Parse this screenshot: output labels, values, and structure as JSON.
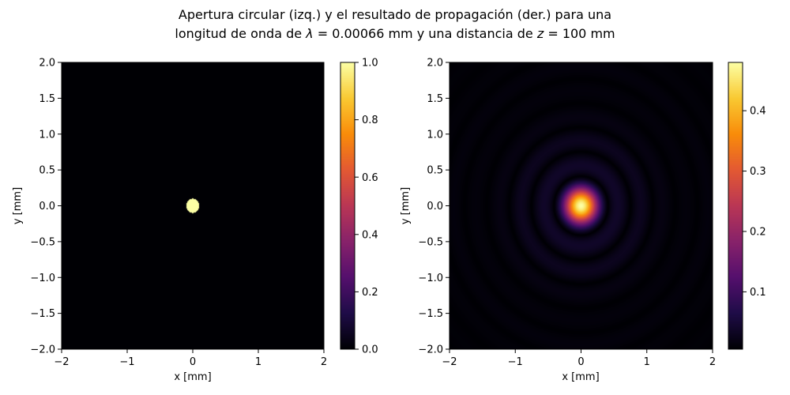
{
  "figure": {
    "title_line1": "Apertura circular (izq.) y el resultado de propagación (der.) para una",
    "title_line2_parts": [
      "longitud de onda de ",
      "λ",
      " =  0.00066 mm y una distancia de ",
      "z",
      " =  100 mm"
    ]
  },
  "colors": {
    "colormap": "inferno",
    "background": "#ffffff",
    "text": "#000000"
  },
  "chart_data": [
    {
      "type": "heatmap",
      "name": "aperture",
      "xlabel": "x [mm]",
      "ylabel": "y [mm]",
      "xlim": [
        -2,
        2
      ],
      "ylim": [
        -2,
        2
      ],
      "x_ticks": [
        -2,
        -1,
        0,
        1,
        2
      ],
      "x_tick_labels": [
        "−2",
        "−1",
        "0",
        "1",
        "2"
      ],
      "y_ticks": [
        -2.0,
        -1.5,
        -1.0,
        -0.5,
        0.0,
        0.5,
        1.0,
        1.5,
        2.0
      ],
      "y_tick_labels": [
        "−2.0",
        "−1.5",
        "−1.0",
        "−0.5",
        "0.0",
        "0.5",
        "1.0",
        "1.5",
        "2.0"
      ],
      "colorbar": {
        "range": [
          0.0,
          1.0
        ],
        "ticks": [
          0.0,
          0.2,
          0.4,
          0.6,
          0.8,
          1.0
        ],
        "tick_labels": [
          "0.0",
          "0.2",
          "0.4",
          "0.6",
          "0.8",
          "1.0"
        ]
      },
      "aperture": {
        "center": [
          0,
          0
        ],
        "radius_mm": 0.1,
        "value_inside": 1.0,
        "value_outside": 0.0
      }
    },
    {
      "type": "heatmap",
      "name": "propagated-intensity",
      "xlabel": "x [mm]",
      "ylabel": "y [mm]",
      "xlim": [
        -2,
        2
      ],
      "ylim": [
        -2,
        2
      ],
      "x_ticks": [
        -2,
        -1,
        0,
        1,
        2
      ],
      "x_tick_labels": [
        "−2",
        "−1",
        "0",
        "1",
        "2"
      ],
      "y_ticks": [
        -2.0,
        -1.5,
        -1.0,
        -0.5,
        0.0,
        0.5,
        1.0,
        1.5,
        2.0
      ],
      "y_tick_labels": [
        "−2.0",
        "−1.5",
        "−1.0",
        "−0.5",
        "0.0",
        "0.5",
        "1.0",
        "1.5",
        "2.0"
      ],
      "colorbar": {
        "range": [
          0.005,
          0.48
        ],
        "ticks": [
          0.1,
          0.2,
          0.3,
          0.4
        ],
        "tick_labels": [
          "0.1",
          "0.2",
          "0.3",
          "0.4"
        ]
      },
      "pattern": {
        "center": [
          0,
          0
        ],
        "peak_value": 0.48,
        "min_value": 0.005,
        "ring_radii_mm": [
          0.42,
          0.75,
          1.08,
          1.42,
          1.75
        ]
      }
    }
  ]
}
